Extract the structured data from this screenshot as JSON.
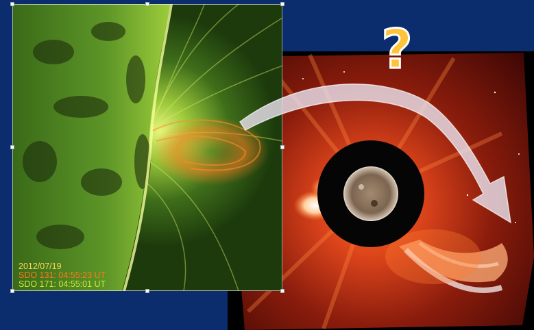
{
  "caption": {
    "date": "2012/07/19",
    "sdo131": "SDO 131:  04:55:23 UT",
    "sdo171": "SDO 171:  04:55:01 UT"
  },
  "question_mark": "?",
  "colors": {
    "background": "#0b2d6e",
    "caption_date": "#ffd85a",
    "caption_131": "#ff7a1a",
    "caption_171": "#c9e83a",
    "question_fill": "#ffc43a",
    "arrow_fill": "#e8e0ec"
  },
  "icons": {
    "sdo_image": "solar-limb-image",
    "coronagraph_image": "lasco-coronagraph-image",
    "arrow": "curved-arrow-icon"
  }
}
